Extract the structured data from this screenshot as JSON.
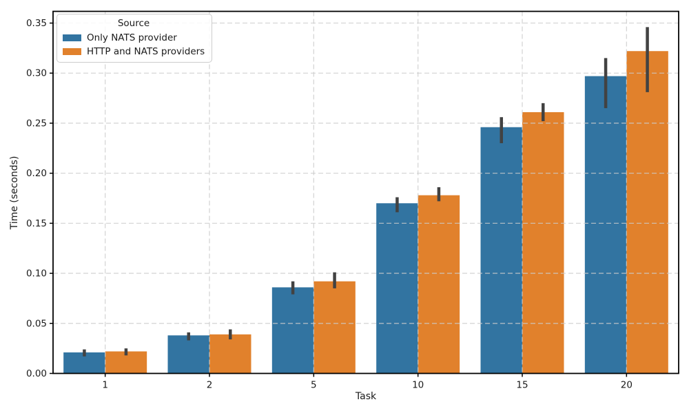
{
  "chart_data": {
    "type": "bar",
    "title": "",
    "xlabel": "Task",
    "ylabel": "Time (seconds)",
    "categories": [
      "1",
      "2",
      "5",
      "10",
      "15",
      "20"
    ],
    "series": [
      {
        "name": "Only NATS provider",
        "color": "#3274a1",
        "values": [
          0.021,
          0.038,
          0.086,
          0.17,
          0.246,
          0.297
        ],
        "error_low": [
          0.017,
          0.033,
          0.079,
          0.161,
          0.23,
          0.265
        ],
        "error_high": [
          0.024,
          0.041,
          0.092,
          0.176,
          0.256,
          0.315
        ]
      },
      {
        "name": "HTTP and NATS providers",
        "color": "#e1812c",
        "values": [
          0.022,
          0.039,
          0.092,
          0.178,
          0.261,
          0.322
        ],
        "error_low": [
          0.018,
          0.034,
          0.085,
          0.172,
          0.252,
          0.281
        ],
        "error_high": [
          0.025,
          0.044,
          0.101,
          0.186,
          0.27,
          0.346
        ]
      }
    ],
    "ylim": [
      0,
      0.3617
    ],
    "yticks": [
      0.0,
      0.05,
      0.1,
      0.15,
      0.2,
      0.25,
      0.3,
      0.35
    ],
    "ytick_labels": [
      "0.00",
      "0.05",
      "0.10",
      "0.15",
      "0.20",
      "0.25",
      "0.30",
      "0.35"
    ],
    "legend": {
      "title": "Source",
      "position": "upper-left"
    },
    "grid": {
      "horizontal": true,
      "vertical": true,
      "style": "dashed"
    },
    "error_bar_color": "#424242"
  },
  "style_colors": {
    "grid": "#cccccc",
    "spine": "#000000",
    "text": "#1a1a1a"
  }
}
